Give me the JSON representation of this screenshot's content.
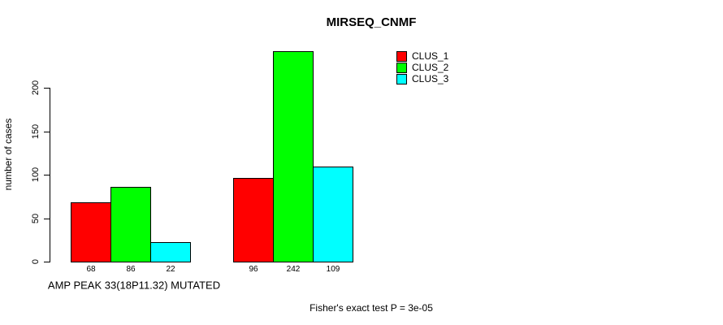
{
  "chart_data": {
    "type": "bar",
    "title": "MIRSEQ_CNMF",
    "ylabel": "number of cases",
    "xlabel": "AMP PEAK 33(18P11.32) MUTATED",
    "annotation": "Fisher's exact test P = 3e-05",
    "ylim": [
      0,
      200
    ],
    "yticks": [
      0,
      50,
      100,
      150,
      200
    ],
    "grid": false,
    "legend_position": "top-right",
    "bar_value_labels_shown": true,
    "groups": 2,
    "series": [
      {
        "name": "CLUS_1",
        "color": "#FF0000",
        "values": [
          68,
          96
        ]
      },
      {
        "name": "CLUS_2",
        "color": "#00FF00",
        "values": [
          86,
          242
        ]
      },
      {
        "name": "CLUS_3",
        "color": "#00FFFF",
        "values": [
          22,
          109
        ]
      }
    ]
  }
}
